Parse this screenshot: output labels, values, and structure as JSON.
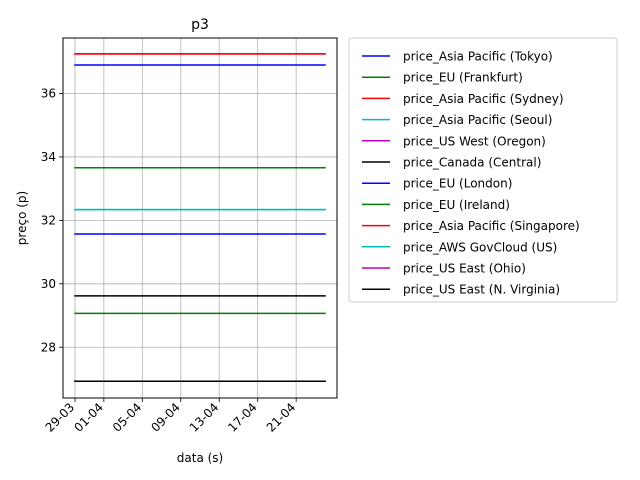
{
  "chart_data": {
    "type": "line",
    "title": "p3",
    "xlabel": "data (s)",
    "ylabel": "preço (p)",
    "x_tick_labels": [
      "29-03",
      "01-04",
      "05-04",
      "09-04",
      "13-04",
      "17-04",
      "21-04"
    ],
    "y_tick_labels": [
      "28",
      "30",
      "32",
      "34",
      "36"
    ],
    "x_range": [
      "29-03",
      "24-04"
    ],
    "ylim": [
      26.4,
      37.75
    ],
    "grid": true,
    "legend_position": "outside-right",
    "series": [
      {
        "name": "price_Asia Pacific (Tokyo)",
        "color": "#0000ff",
        "values": [
          36.9,
          36.9
        ]
      },
      {
        "name": "price_EU (Frankfurt)",
        "color": "#008000",
        "values": [
          29.07,
          29.07
        ]
      },
      {
        "name": "price_Asia Pacific (Sydney)",
        "color": "#ff0000",
        "values": [
          37.25,
          37.25
        ]
      },
      {
        "name": "price_Asia Pacific (Seoul)",
        "color": "#00bfbf",
        "values": [
          32.34,
          32.34
        ]
      },
      {
        "name": "price_US West (Oregon)",
        "color": "#bf00bf",
        "values": [
          26.93,
          26.93
        ]
      },
      {
        "name": "price_Canada (Central)",
        "color": "#000000",
        "values": [
          29.62,
          29.62
        ]
      },
      {
        "name": "price_EU (London)",
        "color": "#0000ff",
        "values": [
          31.57,
          31.57
        ]
      },
      {
        "name": "price_EU (Ireland)",
        "color": "#008000",
        "values": [
          33.66,
          33.66
        ]
      },
      {
        "name": "price_Asia Pacific (Singapore)",
        "color": "#ff0000",
        "values": [
          37.25,
          37.25
        ]
      },
      {
        "name": "price_AWS GovCloud (US)",
        "color": "#00bfbf",
        "values": [
          32.34,
          32.34
        ]
      },
      {
        "name": "price_US East (Ohio)",
        "color": "#bf00bf",
        "values": [
          26.93,
          26.93
        ]
      },
      {
        "name": "price_US East (N. Virginia)",
        "color": "#000000",
        "values": [
          26.93,
          26.93
        ]
      }
    ]
  }
}
